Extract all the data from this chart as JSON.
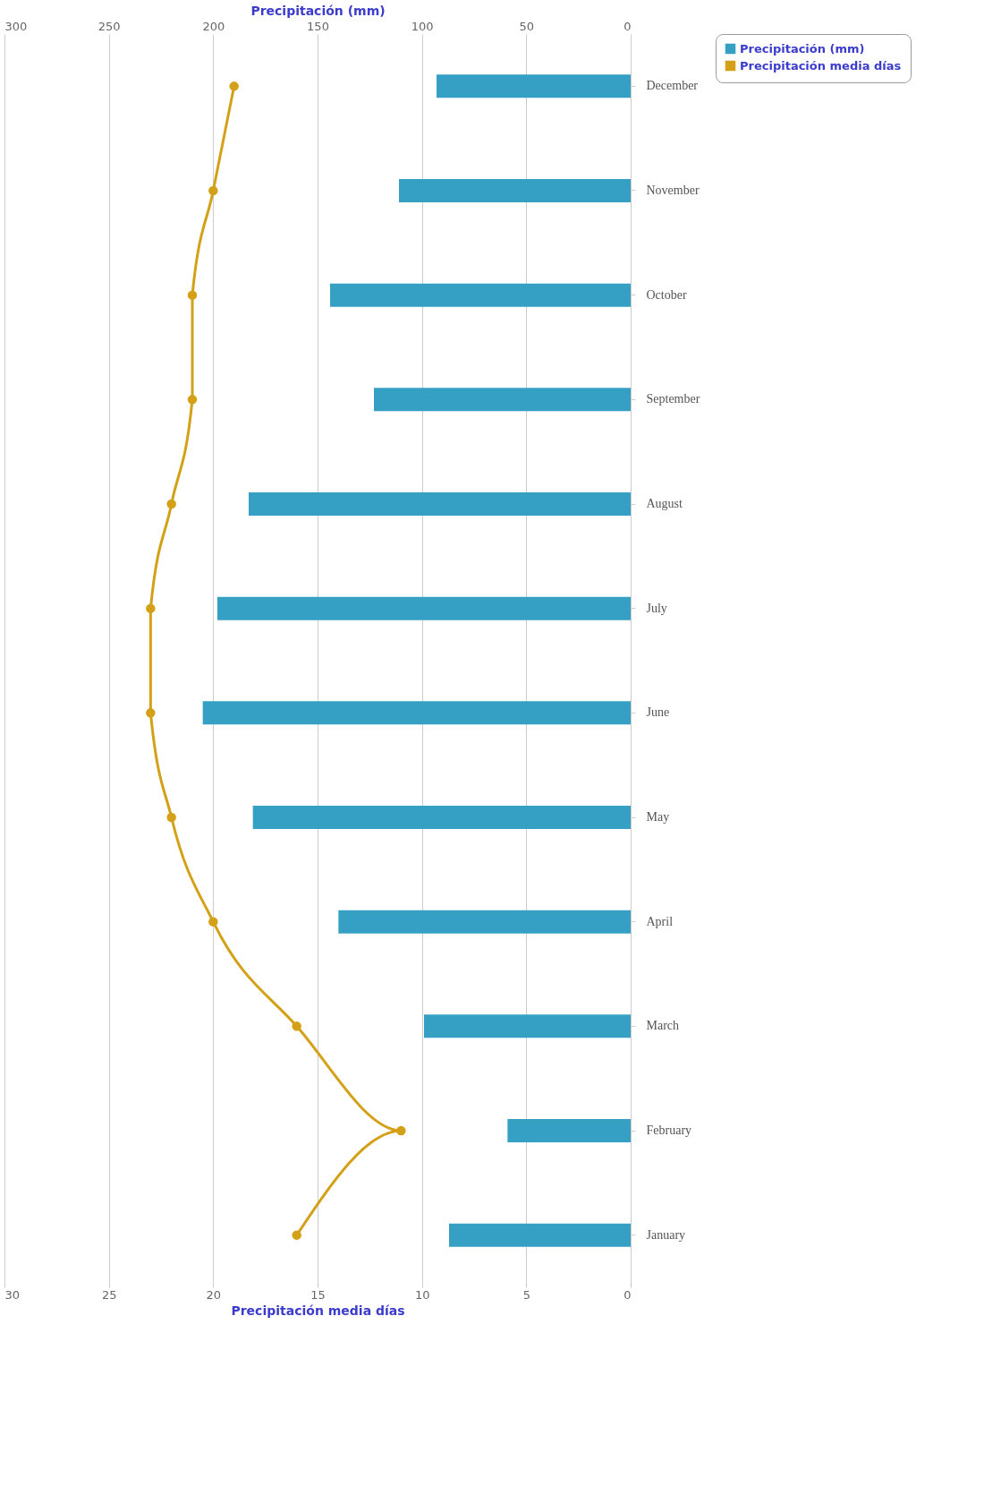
{
  "chart_data": {
    "type": "bar",
    "orientation": "horizontal",
    "categories": [
      "December",
      "November",
      "October",
      "September",
      "August",
      "July",
      "June",
      "May",
      "April",
      "March",
      "February",
      "January"
    ],
    "series": [
      {
        "name": "Precipitación (mm)",
        "axis": "x2",
        "color": "#35a0c4",
        "values": [
          93,
          111,
          144,
          123,
          183,
          198,
          205,
          181,
          140,
          99,
          59,
          87
        ]
      },
      {
        "name": "Precipitación media días",
        "type": "line",
        "color": "#d4a017",
        "values": [
          19,
          20,
          21,
          21,
          22,
          23,
          23,
          22,
          20,
          16,
          11,
          16
        ]
      }
    ],
    "xlabel": "Precipitación media días",
    "x2label": "Precipitación (mm)",
    "xlim": [
      30,
      0
    ],
    "xticks": [
      30,
      25,
      20,
      15,
      10,
      5,
      0
    ],
    "x2lim": [
      300,
      0
    ],
    "x2ticks": [
      300,
      250,
      200,
      150,
      100,
      50,
      0
    ],
    "grid": true,
    "legend": "right",
    "marker": "circle",
    "line_style": "solid"
  }
}
